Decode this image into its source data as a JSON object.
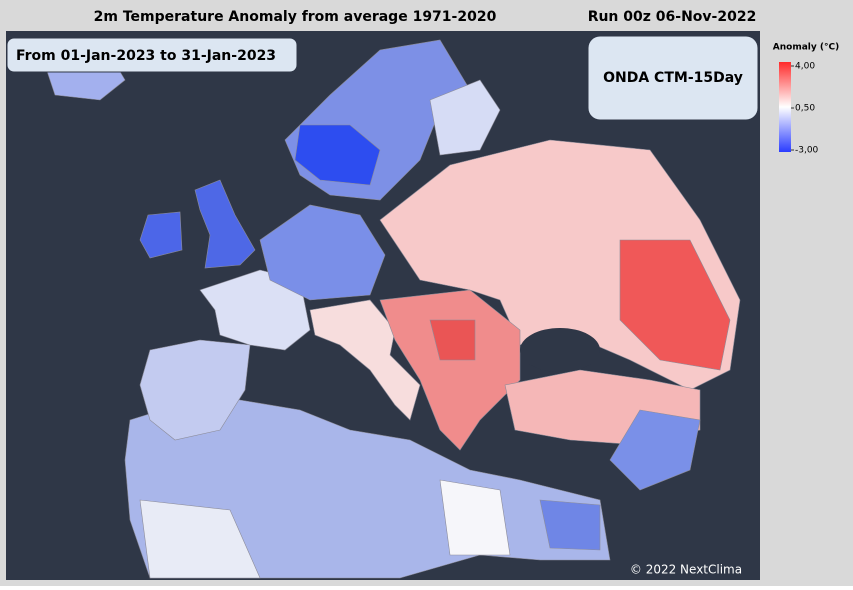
{
  "header": {
    "title": "2m Temperature Anomaly from average 1971-2020",
    "run": "Run 00z 06-Nov-2022"
  },
  "period": "From 01-Jan-2023 to 31-Jan-2023",
  "model": "ONDA CTM-15Day",
  "legend": {
    "title": "Anomaly (°C)",
    "ticks": [
      {
        "value": 4,
        "label": "4,00"
      },
      {
        "value": 0.5,
        "label": "0,50"
      },
      {
        "value": -3,
        "label": "-3,00"
      }
    ]
  },
  "copyright": "© 2022 NextClima"
}
